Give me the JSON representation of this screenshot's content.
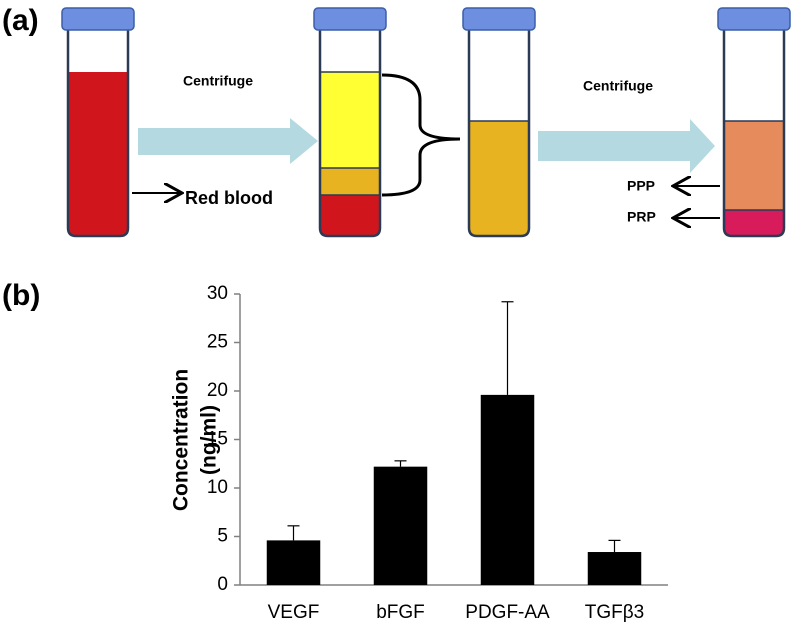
{
  "panel_a": {
    "label": "(a)",
    "step1": "Centrifuge",
    "step2": "Centrifuge",
    "red_blood": "Red blood",
    "ppp": "PPP",
    "prp": "PRP"
  },
  "panel_b_label": "(b)",
  "chart_data": {
    "type": "bar",
    "y_label_line1": "Concentration",
    "y_label_line2": "(ng/ml)",
    "categories": [
      "VEGF",
      "bFGF",
      "PDGF-AA",
      "TGFβ3"
    ],
    "values": [
      4.6,
      12.2,
      19.6,
      3.4
    ],
    "errors": [
      1.5,
      0.6,
      9.6,
      1.2
    ],
    "color": "#000000",
    "ylim": [
      0,
      30
    ],
    "yticks": [
      0,
      5,
      10,
      15,
      20,
      25,
      30
    ],
    "grid": false
  }
}
